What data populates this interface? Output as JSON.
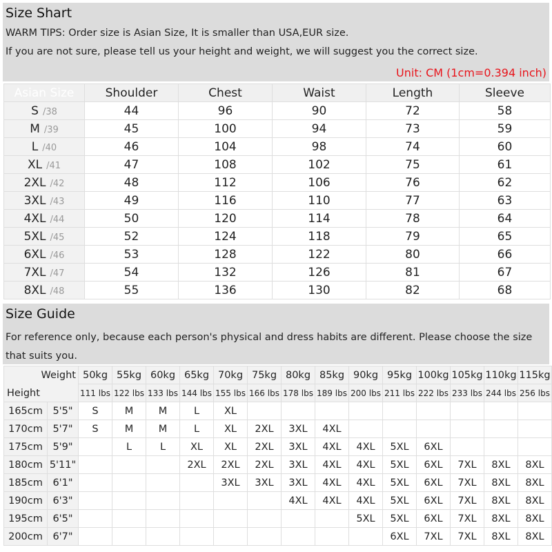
{
  "size_chart": {
    "title": "Size Shart",
    "tips": [
      "WARM TIPS: Order size is Asian Size, It is smaller than USA,EUR size.",
      "If you are not sure, please tell us your height and weight, we will suggest you the correct size."
    ],
    "unit": "Unit: CM (1cm=0.394 inch)",
    "headers": [
      "Asian Size",
      "Shoulder",
      "Chest",
      "Waist",
      "Length",
      "Sleeve"
    ],
    "rows": [
      {
        "size": "S",
        "eu": "/38",
        "values": [
          "44",
          "96",
          "90",
          "72",
          "58"
        ]
      },
      {
        "size": "M",
        "eu": "/39",
        "values": [
          "45",
          "100",
          "94",
          "73",
          "59"
        ]
      },
      {
        "size": "L",
        "eu": "/40",
        "values": [
          "46",
          "104",
          "98",
          "74",
          "60"
        ]
      },
      {
        "size": "XL",
        "eu": "/41",
        "values": [
          "47",
          "108",
          "102",
          "75",
          "61"
        ]
      },
      {
        "size": "2XL",
        "eu": "/42",
        "values": [
          "48",
          "112",
          "106",
          "76",
          "62"
        ]
      },
      {
        "size": "3XL",
        "eu": "/43",
        "values": [
          "49",
          "116",
          "110",
          "77",
          "63"
        ]
      },
      {
        "size": "4XL",
        "eu": "/44",
        "values": [
          "50",
          "120",
          "114",
          "78",
          "64"
        ]
      },
      {
        "size": "5XL",
        "eu": "/45",
        "values": [
          "52",
          "124",
          "118",
          "79",
          "65"
        ]
      },
      {
        "size": "6XL",
        "eu": "/46",
        "values": [
          "53",
          "128",
          "122",
          "80",
          "66"
        ]
      },
      {
        "size": "7XL",
        "eu": "/47",
        "values": [
          "54",
          "132",
          "126",
          "81",
          "67"
        ]
      },
      {
        "size": "8XL",
        "eu": "/48",
        "values": [
          "55",
          "136",
          "130",
          "82",
          "68"
        ]
      }
    ],
    "accent_color": "#e5141b"
  },
  "size_guide": {
    "title": "Size Guide",
    "note": "For reference only, because each person's physical and dress habits are different. Please choose the size that suits you.",
    "weight_label": "Weight",
    "height_label": "Height",
    "weights_kg": [
      "50kg",
      "55kg",
      "60kg",
      "65kg",
      "70kg",
      "75kg",
      "80kg",
      "85kg",
      "90kg",
      "95kg",
      "100kg",
      "105kg",
      "110kg",
      "115kg"
    ],
    "weights_lbs": [
      "111 lbs",
      "122 lbs",
      "133 lbs",
      "144 lbs",
      "155 lbs",
      "166 lbs",
      "178 lbs",
      "189 lbs",
      "200 lbs",
      "211 lbs",
      "222 lbs",
      "233 lbs",
      "244 lbs",
      "256 lbs"
    ],
    "rows": [
      {
        "cm": "165cm",
        "ft": "5'5\"",
        "sizes": [
          "S",
          "M",
          "M",
          "L",
          "XL",
          "",
          "",
          "",
          "",
          "",
          "",
          "",
          "",
          ""
        ]
      },
      {
        "cm": "170cm",
        "ft": "5'7\"",
        "sizes": [
          "S",
          "M",
          "M",
          "L",
          "XL",
          "2XL",
          "3XL",
          "4XL",
          "",
          "",
          "",
          "",
          "",
          ""
        ]
      },
      {
        "cm": "175cm",
        "ft": "5'9\"",
        "sizes": [
          "",
          "L",
          "L",
          "XL",
          "XL",
          "2XL",
          "3XL",
          "4XL",
          "4XL",
          "5XL",
          "6XL",
          "",
          "",
          ""
        ]
      },
      {
        "cm": "180cm",
        "ft": "5'11\"",
        "sizes": [
          "",
          "",
          "",
          "2XL",
          "2XL",
          "2XL",
          "3XL",
          "4XL",
          "4XL",
          "5XL",
          "6XL",
          "7XL",
          "8XL",
          "8XL"
        ]
      },
      {
        "cm": "185cm",
        "ft": "6'1\"",
        "sizes": [
          "",
          "",
          "",
          "",
          "3XL",
          "3XL",
          "3XL",
          "4XL",
          "4XL",
          "5XL",
          "6XL",
          "7XL",
          "8XL",
          "8XL"
        ]
      },
      {
        "cm": "190cm",
        "ft": "6'3\"",
        "sizes": [
          "",
          "",
          "",
          "",
          "",
          "",
          "4XL",
          "4XL",
          "4XL",
          "5XL",
          "6XL",
          "7XL",
          "8XL",
          "8XL"
        ]
      },
      {
        "cm": "195cm",
        "ft": "6'5\"",
        "sizes": [
          "",
          "",
          "",
          "",
          "",
          "",
          "",
          "",
          "5XL",
          "5XL",
          "6XL",
          "7XL",
          "8XL",
          "8XL"
        ]
      },
      {
        "cm": "200cm",
        "ft": "6'7\"",
        "sizes": [
          "",
          "",
          "",
          "",
          "",
          "",
          "",
          "",
          "",
          "6XL",
          "7XL",
          "7XL",
          "8XL",
          "8XL"
        ]
      }
    ]
  }
}
